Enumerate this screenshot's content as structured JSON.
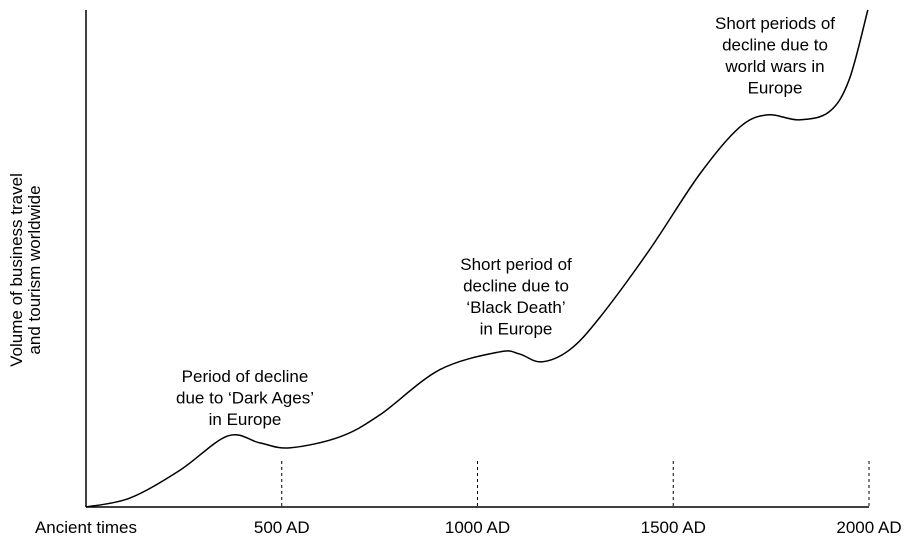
{
  "chart_data": {
    "type": "line",
    "ylabel": [
      "Volume of business travel",
      "and tourism worldwide"
    ],
    "annotations": [
      [
        "Period of decline",
        "due to ‘Dark Ages’",
        "in Europe"
      ],
      [
        "Short period of",
        "decline due to",
        "‘Black Death’",
        "in Europe"
      ],
      [
        "Short periods of",
        "decline due to",
        "world wars in",
        "Europe"
      ]
    ],
    "x": [
      0,
      112,
      240,
      362,
      444,
      520,
      648,
      750,
      903,
      1056,
      1107,
      1163,
      1235,
      1311,
      1439,
      1566,
      1668,
      1740,
      1821,
      1898,
      1949,
      1997
    ],
    "series": [
      {
        "color": "#000000",
        "values": [
          0,
          1.8,
          7.4,
          14.3,
          12.9,
          11.9,
          14.1,
          18.5,
          27.6,
          31.2,
          30.8,
          29.2,
          31.6,
          38.0,
          51.7,
          66.8,
          76.3,
          78.9,
          77.9,
          79.5,
          85.9,
          100
        ]
      }
    ],
    "xlim": [
      0,
      2000
    ],
    "xticks": [
      {
        "value": 0,
        "label": "Ancient times"
      },
      {
        "value": 500,
        "label": "500 AD"
      },
      {
        "value": 1000,
        "label": "1000 AD"
      },
      {
        "value": 1500,
        "label": "1500 AD"
      },
      {
        "value": 2000,
        "label": "2000 AD"
      }
    ],
    "ylim": [
      0,
      100
    ]
  }
}
